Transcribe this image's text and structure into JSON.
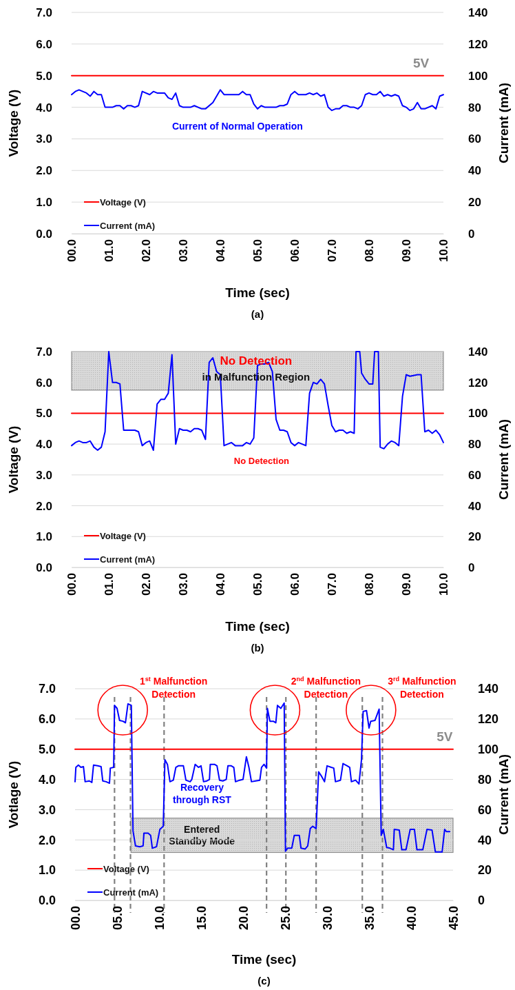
{
  "chart_data": [
    {
      "type": "line",
      "title": "(a)",
      "xlabel": "Time (sec)",
      "ylabel": "Voltage (V)",
      "y2label": "Current (mA)",
      "xlim": [
        0,
        10
      ],
      "xticks": [
        {
          "value": 0,
          "label": "00.0"
        },
        {
          "value": 1,
          "label": "01.0"
        },
        {
          "value": 2,
          "label": "02.0"
        },
        {
          "value": 3,
          "label": "03.0"
        },
        {
          "value": 4,
          "label": "04.0"
        },
        {
          "value": 5,
          "label": "05.0"
        },
        {
          "value": 6,
          "label": "06.0"
        },
        {
          "value": 7,
          "label": "07.0"
        },
        {
          "value": 8,
          "label": "08.0"
        },
        {
          "value": 9,
          "label": "09.0"
        },
        {
          "value": 10,
          "label": "10.0"
        }
      ],
      "ylim": [
        0,
        7
      ],
      "yticks": [
        {
          "value": 0,
          "label": "0.0"
        },
        {
          "value": 1,
          "label": "1.0"
        },
        {
          "value": 2,
          "label": "2.0"
        },
        {
          "value": 3,
          "label": "3.0"
        },
        {
          "value": 4,
          "label": "4.0"
        },
        {
          "value": 5,
          "label": "5.0"
        },
        {
          "value": 6,
          "label": "6.0"
        },
        {
          "value": 7,
          "label": "7.0"
        }
      ],
      "y2lim": [
        0,
        140
      ],
      "y2ticks": [
        0,
        20,
        40,
        60,
        80,
        100,
        120,
        140
      ],
      "grid": "y",
      "legend": "bottom left",
      "annotations": [
        {
          "text": "5V",
          "x": 9.4,
          "y": 5
        },
        "Current of Normal Operation"
      ],
      "series": [
        {
          "name": "Voltage (V)",
          "color": "#ff0000",
          "x": [
            0,
            10
          ],
          "values": [
            5,
            5
          ]
        },
        {
          "name": "Current (mA)",
          "color": "#0000ff",
          "axis": "y2",
          "x": [
            0,
            0.1,
            0.2,
            0.4,
            0.5,
            0.6,
            0.7,
            0.8,
            0.9,
            1.1,
            1.2,
            1.3,
            1.4,
            1.5,
            1.6,
            1.7,
            1.8,
            1.9,
            2.1,
            2.2,
            2.3,
            2.5,
            2.6,
            2.7,
            2.8,
            2.9,
            3.0,
            3.2,
            3.3,
            3.5,
            3.6,
            3.8,
            4.0,
            4.1,
            4.5,
            4.6,
            4.7,
            4.8,
            4.9,
            5.0,
            5.1,
            5.2,
            5.5,
            5.6,
            5.7,
            5.8,
            5.9,
            6.0,
            6.1,
            6.3,
            6.4,
            6.5,
            6.6,
            6.7,
            6.8,
            6.9,
            7.0,
            7.1,
            7.2,
            7.3,
            7.4,
            7.5,
            7.6,
            7.7,
            7.8,
            7.9,
            8.0,
            8.1,
            8.2,
            8.3,
            8.4,
            8.5,
            8.6,
            8.7,
            8.8,
            8.9,
            9.0,
            9.1,
            9.2,
            9.3,
            9.4,
            9.5,
            9.7,
            9.8,
            9.9,
            10
          ],
          "values": [
            88,
            90,
            91,
            89,
            87,
            90,
            88,
            88,
            80,
            80,
            81,
            81,
            79,
            81,
            81,
            80,
            81,
            90,
            88,
            90,
            89,
            89,
            86,
            85,
            89,
            81,
            80,
            80,
            81,
            79,
            79,
            83,
            91,
            88,
            88,
            90,
            88,
            88,
            82,
            79,
            81,
            80,
            80,
            81,
            81,
            82,
            88,
            90,
            88,
            88,
            89,
            88,
            89,
            87,
            88,
            80,
            78,
            79,
            79,
            81,
            81,
            80,
            80,
            79,
            81,
            88,
            89,
            88,
            88,
            90,
            87,
            88,
            87,
            88,
            87,
            81,
            80,
            78,
            79,
            83,
            79,
            79,
            81,
            79,
            87,
            88
          ]
        }
      ]
    },
    {
      "type": "line",
      "title": "(b)",
      "xlabel": "Time (sec)",
      "ylabel": "Voltage (V)",
      "y2label": "Current (mA)",
      "xlim": [
        0,
        10
      ],
      "xticks": [
        {
          "value": 0,
          "label": "00.0"
        },
        {
          "value": 1,
          "label": "01.0"
        },
        {
          "value": 2,
          "label": "02.0"
        },
        {
          "value": 3,
          "label": "03.0"
        },
        {
          "value": 4,
          "label": "04.0"
        },
        {
          "value": 5,
          "label": "05.0"
        },
        {
          "value": 6,
          "label": "06.0"
        },
        {
          "value": 7,
          "label": "07.0"
        },
        {
          "value": 8,
          "label": "08.0"
        },
        {
          "value": 9,
          "label": "09.0"
        },
        {
          "value": 10,
          "label": "10.0"
        }
      ],
      "ylim": [
        0,
        7
      ],
      "yticks": [
        {
          "value": 0,
          "label": "0.0"
        },
        {
          "value": 1,
          "label": "1.0"
        },
        {
          "value": 2,
          "label": "2.0"
        },
        {
          "value": 3,
          "label": "3.0"
        },
        {
          "value": 4,
          "label": "4.0"
        },
        {
          "value": 5,
          "label": "5.0"
        },
        {
          "value": 6,
          "label": "6.0"
        },
        {
          "value": 7,
          "label": "7.0"
        }
      ],
      "y2lim": [
        0,
        140
      ],
      "y2ticks": [
        0,
        20,
        40,
        60,
        80,
        100,
        120,
        140
      ],
      "grid": "y",
      "legend": "bottom left",
      "bands": [
        {
          "axis": "y",
          "from": 5.75,
          "to": 7,
          "color": "#d9d9d9"
        }
      ],
      "annotations": [
        "No Detection",
        "in Malfunction Region",
        "No Detection"
      ],
      "series": [
        {
          "name": "Voltage (V)",
          "color": "#ff0000",
          "x": [
            0,
            10
          ],
          "values": [
            5,
            5
          ]
        },
        {
          "name": "Current (mA)",
          "color": "#0000ff",
          "axis": "y2",
          "x": [
            0,
            0.1,
            0.2,
            0.3,
            0.4,
            0.5,
            0.6,
            0.7,
            0.8,
            0.9,
            1.0,
            1.1,
            1.2,
            1.3,
            1.4,
            1.7,
            1.8,
            1.9,
            2.0,
            2.1,
            2.2,
            2.3,
            2.4,
            2.5,
            2.6,
            2.7,
            2.8,
            2.9,
            3.0,
            3.1,
            3.2,
            3.3,
            3.4,
            3.5,
            3.6,
            3.7,
            3.8,
            3.9,
            4.0,
            4.1,
            4.2,
            4.3,
            4.4,
            4.6,
            4.7,
            4.8,
            4.9,
            5.0,
            5.1,
            5.2,
            5.3,
            5.4,
            5.5,
            5.6,
            5.7,
            5.8,
            5.9,
            6.0,
            6.1,
            6.3,
            6.4,
            6.5,
            6.6,
            6.7,
            6.8,
            6.9,
            7.0,
            7.1,
            7.2,
            7.3,
            7.4,
            7.5,
            7.6,
            7.65,
            7.75,
            7.8,
            7.9,
            8.0,
            8.1,
            8.15,
            8.25,
            8.3,
            8.4,
            8.5,
            8.6,
            8.7,
            8.8,
            8.9,
            9.0,
            9.1,
            9.3,
            9.4,
            9.5,
            9.6,
            9.7,
            9.8,
            9.9,
            10
          ],
          "values": [
            79,
            81,
            82,
            81,
            81,
            82,
            78,
            76,
            78,
            88,
            140,
            120,
            120,
            119,
            89,
            89,
            88,
            79,
            81,
            82,
            76,
            106,
            109,
            109,
            113,
            138,
            80,
            90,
            89,
            89,
            88,
            90,
            90,
            89,
            83,
            133,
            136,
            127,
            125,
            79,
            80,
            81,
            79,
            79,
            81,
            80,
            84,
            131,
            132,
            132,
            133,
            127,
            96,
            89,
            89,
            88,
            81,
            79,
            81,
            79,
            113,
            120,
            119,
            122,
            119,
            105,
            92,
            88,
            89,
            89,
            87,
            88,
            87,
            140,
            140,
            126,
            122,
            119,
            119,
            140,
            140,
            78,
            77,
            80,
            82,
            81,
            79,
            111,
            125,
            124,
            125,
            125,
            88,
            89,
            87,
            89,
            86,
            81
          ]
        }
      ]
    },
    {
      "type": "line",
      "title": "(c)",
      "xlabel": "Time (sec)",
      "ylabel": "Votlage (V)",
      "y2label": "Current (mA)",
      "xlim": [
        0,
        45
      ],
      "xticks": [
        {
          "value": 0,
          "label": "00.0"
        },
        {
          "value": 5,
          "label": "05.0"
        },
        {
          "value": 10,
          "label": "10.0"
        },
        {
          "value": 15,
          "label": "15.0"
        },
        {
          "value": 20,
          "label": "20.0"
        },
        {
          "value": 25,
          "label": "25.0"
        },
        {
          "value": 30,
          "label": "30.0"
        },
        {
          "value": 35,
          "label": "35.0"
        },
        {
          "value": 40,
          "label": "40.0"
        },
        {
          "value": 45,
          "label": "45.0"
        }
      ],
      "ylim": [
        0,
        7
      ],
      "yticks": [
        {
          "value": 0,
          "label": "0.0"
        },
        {
          "value": 1,
          "label": "1.0"
        },
        {
          "value": 2,
          "label": "2.0"
        },
        {
          "value": 3,
          "label": "3.0"
        },
        {
          "value": 4,
          "label": "4.0"
        },
        {
          "value": 5,
          "label": "5.0"
        },
        {
          "value": 6,
          "label": "6.0"
        },
        {
          "value": 7,
          "label": "7.0"
        }
      ],
      "y2lim": [
        0,
        140
      ],
      "y2ticks": [
        0,
        20,
        40,
        60,
        80,
        100,
        120,
        140
      ],
      "grid": "y",
      "legend": "bottom left",
      "bands": [
        {
          "axis": "y2",
          "from": 31.7,
          "to": 54.4,
          "label": "Entered\nStandby Mode",
          "color": "#d9d9d9"
        }
      ],
      "ref_lines": [
        {
          "axis": "x",
          "value": 4.7,
          "color": "#808080",
          "line_style": "dashed"
        },
        {
          "axis": "x",
          "value": 6.6,
          "color": "#808080",
          "line_style": "dashed"
        },
        {
          "axis": "x",
          "value": 10.6,
          "color": "#808080",
          "line_style": "dashed"
        },
        {
          "axis": "x",
          "value": 22.8,
          "color": "#808080",
          "line_style": "dashed"
        },
        {
          "axis": "x",
          "value": 25.1,
          "color": "#808080",
          "line_style": "dashed"
        },
        {
          "axis": "x",
          "value": 28.7,
          "color": "#808080",
          "line_style": "dashed"
        },
        {
          "axis": "x",
          "value": 34.2,
          "color": "#808080",
          "line_style": "dashed"
        },
        {
          "axis": "x",
          "value": 36.6,
          "color": "#808080",
          "line_style": "dashed"
        }
      ],
      "annotations": [
        "1$^{st}$ Malfunction\nDetection",
        "2$^{nd}$ Malfunction\nDetection",
        "3$^{rd}$ Malfunction\nDetection",
        {
          "text": "5V",
          "x": 44,
          "y": 5
        },
        "Recovery\nthrough RST"
      ],
      "series": [
        {
          "name": "Voltage (V)",
          "color": "#ff0000",
          "x": [
            0,
            45
          ],
          "values": [
            5,
            5
          ]
        },
        {
          "name": "Current (mA)",
          "color": "#0000ff",
          "axis": "y2",
          "x": [
            0,
            0.1,
            0.4,
            0.7,
            1.0,
            1.2,
            1.7,
            2.0,
            2.2,
            2.7,
            3.1,
            3.3,
            3.7,
            4.1,
            4.2,
            4.6,
            4.7,
            5.0,
            5.3,
            5.7,
            6.0,
            6.3,
            6.7,
            6.9,
            7.2,
            7.7,
            8.1,
            8.2,
            8.7,
            9.0,
            9.2,
            9.7,
            10.1,
            10.5,
            10.7,
            11.0,
            11.3,
            11.7,
            12.0,
            12.3,
            12.9,
            13.2,
            13.7,
            13.9,
            14.3,
            14.7,
            15.0,
            15.3,
            15.7,
            16.0,
            16.1,
            16.6,
            16.9,
            17.2,
            17.6,
            18.0,
            18.2,
            18.6,
            18.9,
            19.1,
            19.6,
            20.0,
            20.4,
            20.7,
            21.0,
            21.5,
            22.0,
            22.2,
            22.5,
            22.8,
            22.9,
            23.2,
            23.6,
            23.9,
            24.1,
            24.5,
            24.9,
            25.05,
            25.3,
            25.8,
            26.1,
            26.7,
            26.9,
            27.4,
            27.7,
            28.0,
            28.3,
            28.7,
            29.0,
            29.3,
            29.7,
            30.0,
            30.5,
            30.8,
            31.0,
            31.6,
            31.9,
            32.4,
            32.7,
            32.9,
            33.4,
            33.8,
            34.1,
            34.3,
            34.7,
            35.0,
            35.2,
            35.7,
            36.2,
            36.45,
            36.7,
            37.1,
            37.5,
            37.9,
            38.0,
            38.6,
            38.9,
            39.4,
            39.9,
            40.4,
            40.7,
            41.4,
            41.9,
            42.5,
            42.9,
            43.7,
            44.0,
            44.2,
            44.6
          ],
          "values": [
            78.5,
            88,
            89.5,
            88,
            88.5,
            78.5,
            79,
            78,
            89.5,
            89,
            88.5,
            79,
            78.5,
            77.5,
            87.5,
            88,
            129,
            127,
            119,
            118.5,
            117.5,
            130,
            129,
            46,
            36,
            35.5,
            36,
            44.5,
            44.5,
            43,
            34.5,
            35.5,
            47,
            49,
            93,
            90,
            78.5,
            79.5,
            88,
            89,
            89,
            79.5,
            78.5,
            80,
            90,
            88,
            89,
            78.5,
            79,
            80,
            90,
            90,
            89,
            79.5,
            79,
            80,
            89,
            89,
            88,
            78.5,
            79.5,
            80,
            95,
            88,
            78.5,
            79,
            79.5,
            88,
            90,
            87.5,
            127,
            118.5,
            118.5,
            117.5,
            129,
            127,
            130.5,
            32.5,
            34.5,
            34.5,
            43,
            43,
            34.5,
            34,
            36,
            47.5,
            49,
            47.5,
            85,
            82.5,
            78.5,
            89,
            88,
            87.5,
            78.5,
            79.5,
            90.5,
            89,
            88,
            78.5,
            79.5,
            77,
            93,
            125,
            125.5,
            114,
            118.5,
            119,
            126.5,
            43,
            47,
            35,
            34.5,
            33.5,
            47,
            46.5,
            33.5,
            33.5,
            47,
            47,
            33.5,
            33.5,
            47,
            46.5,
            32,
            32,
            47,
            45.5,
            45.5
          ]
        }
      ]
    }
  ]
}
